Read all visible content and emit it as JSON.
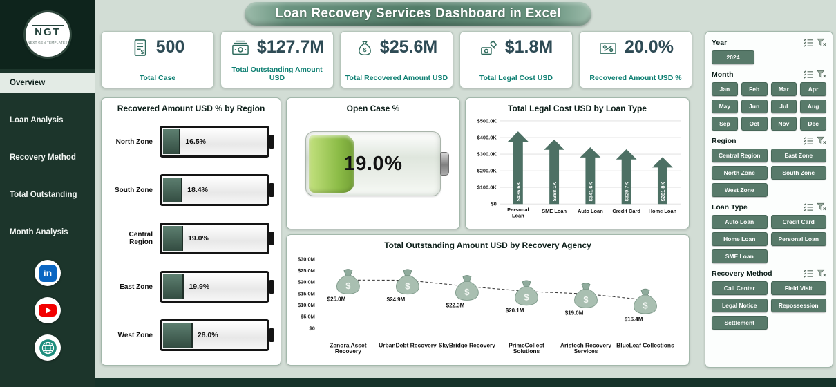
{
  "header": {
    "title": "Loan Recovery Services Dashboard in Excel"
  },
  "sidebar": {
    "logo": {
      "text": "NGT",
      "subtext": "NEXT GEN TEMPLATES"
    },
    "items": [
      {
        "id": "overview",
        "label": "Overview",
        "active": true
      },
      {
        "id": "loan-analysis",
        "label": "Loan Analysis",
        "active": false
      },
      {
        "id": "recovery-method",
        "label": "Recovery Method",
        "active": false
      },
      {
        "id": "total-outstanding",
        "label": "Total Outstanding",
        "active": false
      },
      {
        "id": "month-analysis",
        "label": "Month Analysis",
        "active": false
      }
    ],
    "social": [
      {
        "id": "linkedin"
      },
      {
        "id": "youtube"
      },
      {
        "id": "website"
      }
    ]
  },
  "kpis": [
    {
      "value": "500",
      "label": "Total Case",
      "icon": "case-document-icon"
    },
    {
      "value": "$127.7M",
      "label": "Total Outstanding Amount USD",
      "icon": "cash-stack-icon"
    },
    {
      "value": "$25.6M",
      "label": "Total Recovered Amount USD",
      "icon": "money-bag-icon"
    },
    {
      "value": "$1.8M",
      "label": "Total Legal Cost USD",
      "icon": "legal-cost-icon"
    },
    {
      "value": "20.0%",
      "label": "Recovered Amount USD %",
      "icon": "money-percent-icon"
    }
  ],
  "chart_data": [
    {
      "type": "bar",
      "style": "battery",
      "orientation": "horizontal",
      "title": "Recovered Amount USD % by Region",
      "categories": [
        "North Zone",
        "South Zone",
        "Central Region",
        "East Zone",
        "West Zone"
      ],
      "values": [
        16.5,
        18.4,
        19.0,
        19.9,
        28.0
      ],
      "data_labels": [
        "16.5%",
        "18.4%",
        "19.0%",
        "19.9%",
        "28.0%"
      ],
      "xlim": [
        0,
        100
      ]
    },
    {
      "type": "gauge",
      "style": "battery",
      "title": "Open Case %",
      "value": 19.0,
      "data_label": "19.0%"
    },
    {
      "type": "bar",
      "style": "up-arrow",
      "title": "Total Legal Cost USD by Loan Type",
      "categories": [
        "Personal Loan",
        "SME Loan",
        "Auto Loan",
        "Credit Card",
        "Home Loan"
      ],
      "values": [
        436.6,
        388.1,
        341.6,
        329.7,
        281.8
      ],
      "unit": "K USD",
      "data_labels": [
        "$436.6K",
        "$388.1K",
        "$341.6K",
        "$329.7K",
        "$281.8K"
      ],
      "ylim": [
        0,
        500
      ],
      "yticks": [
        "$0",
        "$100.0K",
        "$200.0K",
        "$300.0K",
        "$400.0K",
        "$500.0K"
      ],
      "grid": true
    },
    {
      "type": "line",
      "style": "money-bag-markers-dashed",
      "title": "Total Outstanding Amount USD by Recovery Agency",
      "categories": [
        "Zenora Asset Recovery",
        "UrbanDebt Recovery",
        "SkyBridge Recovery",
        "PrimeCollect Solutions",
        "Aristech Recovery Services",
        "BlueLeaf Collections"
      ],
      "values": [
        25.0,
        24.9,
        22.3,
        20.1,
        19.0,
        16.4
      ],
      "unit": "M USD",
      "data_labels": [
        "$25.0M",
        "$24.9M",
        "$22.3M",
        "$20.1M",
        "$19.0M",
        "$16.4M"
      ],
      "ylim": [
        0,
        30
      ],
      "yticks": [
        "$0",
        "$5.0M",
        "$10.0M",
        "$15.0M",
        "$20.0M",
        "$25.0M",
        "$30.0M"
      ],
      "grid": false
    }
  ],
  "filters": [
    {
      "id": "year",
      "label": "Year",
      "options": [
        "2024"
      ]
    },
    {
      "id": "month",
      "label": "Month",
      "options": [
        "Jan",
        "Feb",
        "Mar",
        "Apr",
        "May",
        "Jun",
        "Jul",
        "Aug",
        "Sep",
        "Oct",
        "Nov",
        "Dec"
      ]
    },
    {
      "id": "region",
      "label": "Region",
      "options": [
        "Central Region",
        "East Zone",
        "North Zone",
        "South Zone",
        "West Zone"
      ]
    },
    {
      "id": "loan-type",
      "label": "Loan Type",
      "options": [
        "Auto Loan",
        "Credit Card",
        "Home Loan",
        "Personal Loan",
        "SME Loan"
      ]
    },
    {
      "id": "recovery-method",
      "label": "Recovery Method",
      "options": [
        "Call Center",
        "Field Visit",
        "Legal Notice",
        "Repossession",
        "Settlement"
      ]
    }
  ],
  "colors": {
    "accent_dark_green": "#16332a",
    "sidebar_green": "#1c352b",
    "slicer_green": "#587a6a",
    "arrow_green": "#4d7064",
    "kpi_value": "#2e4b55",
    "kpi_label_teal": "#0e7f72",
    "battery_fill": "#42604f",
    "gauge_fill": "#8cbc47"
  }
}
